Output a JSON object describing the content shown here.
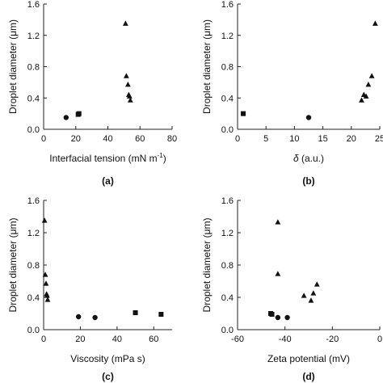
{
  "chart_data": [
    {
      "type": "scatter",
      "panel_label": "(a)",
      "xlabel": "Interfacial tension (mN m",
      "xlabel_sup": "-1",
      "xlabel_close": ")",
      "ylabel": "Droplet diameter (μm)",
      "xlim": [
        0,
        80
      ],
      "ylim": [
        0,
        1.6
      ],
      "xticks": [
        0,
        20,
        40,
        60,
        80
      ],
      "yticks": [
        0.0,
        0.4,
        0.8,
        1.2,
        1.6
      ],
      "ytick_labels": [
        "0.0",
        "0.4",
        "0.8",
        "1.2",
        "1.6"
      ],
      "series": [
        {
          "marker": "square",
          "points": [
            [
              21.5,
              0.19
            ],
            [
              22.0,
              0.2
            ]
          ]
        },
        {
          "marker": "circle",
          "points": [
            [
              14.0,
              0.15
            ]
          ]
        },
        {
          "marker": "triangle",
          "points": [
            [
              51.0,
              1.35
            ],
            [
              51.5,
              0.68
            ],
            [
              52.5,
              0.57
            ],
            [
              53.0,
              0.44
            ],
            [
              53.5,
              0.42
            ],
            [
              54.0,
              0.37
            ]
          ]
        }
      ]
    },
    {
      "type": "scatter",
      "panel_label": "(b)",
      "xlabel_symbol": "δ",
      "xlabel": "(a.u.)",
      "ylabel": "Droplet diameter (μm)",
      "xlim": [
        0,
        25
      ],
      "ylim": [
        0,
        1.6
      ],
      "xticks": [
        0,
        5,
        10,
        15,
        20,
        25
      ],
      "yticks": [
        0.0,
        0.4,
        0.8,
        1.2,
        1.6
      ],
      "ytick_labels": [
        "0.0",
        "0.4",
        "0.8",
        "1.2",
        "1.6"
      ],
      "series": [
        {
          "marker": "square",
          "points": [
            [
              1.0,
              0.2
            ]
          ]
        },
        {
          "marker": "circle",
          "points": [
            [
              12.5,
              0.15
            ]
          ]
        },
        {
          "marker": "triangle",
          "points": [
            [
              21.8,
              0.37
            ],
            [
              22.2,
              0.44
            ],
            [
              22.6,
              0.42
            ],
            [
              23.0,
              0.57
            ],
            [
              23.6,
              0.68
            ],
            [
              24.2,
              1.35
            ]
          ]
        }
      ]
    },
    {
      "type": "scatter",
      "panel_label": "(c)",
      "xlabel": "Viscosity (mPa s)",
      "ylabel": "Droplet diameter (μm)",
      "xlim": [
        0,
        70
      ],
      "ylim": [
        0,
        1.6
      ],
      "xticks": [
        0,
        20,
        40,
        60
      ],
      "yticks": [
        0.0,
        0.4,
        0.8,
        1.2,
        1.6
      ],
      "ytick_labels": [
        "0.0",
        "0.4",
        "0.8",
        "1.2",
        "1.6"
      ],
      "series": [
        {
          "marker": "square",
          "points": [
            [
              50.0,
              0.21
            ],
            [
              64.0,
              0.19
            ]
          ]
        },
        {
          "marker": "circle",
          "points": [
            [
              19.0,
              0.16
            ],
            [
              28.0,
              0.15
            ]
          ]
        },
        {
          "marker": "triangle",
          "points": [
            [
              0.5,
              1.35
            ],
            [
              0.9,
              0.68
            ],
            [
              1.3,
              0.57
            ],
            [
              1.6,
              0.44
            ],
            [
              1.9,
              0.42
            ],
            [
              2.2,
              0.37
            ]
          ]
        }
      ]
    },
    {
      "type": "scatter",
      "panel_label": "(d)",
      "xlabel": "Zeta potential (mV)",
      "ylabel": "Droplet diameter (μm)",
      "xlim": [
        -60,
        0
      ],
      "ylim": [
        0,
        1.6
      ],
      "xticks": [
        -60,
        -40,
        -20,
        0
      ],
      "yticks": [
        0.0,
        0.4,
        0.8,
        1.2,
        1.6
      ],
      "ytick_labels": [
        "0.0",
        "0.4",
        "0.8",
        "1.2",
        "1.6"
      ],
      "series": [
        {
          "marker": "square",
          "points": [
            [
              -46.0,
              0.2
            ],
            [
              -45.5,
              0.19
            ]
          ]
        },
        {
          "marker": "circle",
          "points": [
            [
              -43.0,
              0.15
            ],
            [
              -39.0,
              0.15
            ]
          ]
        },
        {
          "marker": "triangle",
          "points": [
            [
              -43.0,
              1.33
            ],
            [
              -43.0,
              0.69
            ],
            [
              -32.0,
              0.42
            ],
            [
              -29.0,
              0.36
            ],
            [
              -28.0,
              0.45
            ],
            [
              -26.5,
              0.56
            ]
          ]
        }
      ]
    }
  ]
}
